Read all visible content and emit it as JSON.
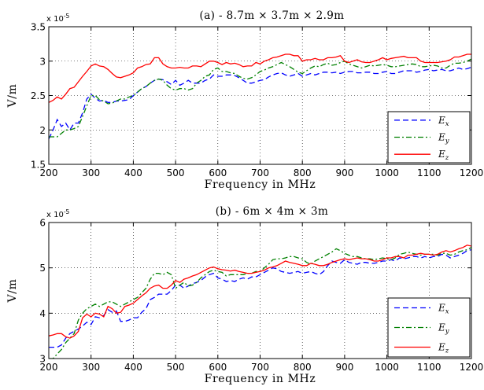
{
  "chart_data": [
    {
      "type": "line",
      "title": "(a) - 8.7m × 3.7m × 2.9m",
      "xlabel": "Frequency in MHz",
      "ylabel": "V/m",
      "multiplier": "x 10",
      "multiplier_exp": "-5",
      "xlim": [
        200,
        1200
      ],
      "ylim": [
        1.5,
        3.5
      ],
      "xticks": [
        "200",
        "300",
        "400",
        "500",
        "600",
        "700",
        "800",
        "900",
        "1000",
        "1100",
        "1200"
      ],
      "yticks": [
        "1.5",
        "2",
        "2.5",
        "3",
        "3.5"
      ],
      "grid": true,
      "legend_position": "bottom-right",
      "x": [
        200,
        210,
        220,
        230,
        240,
        250,
        260,
        270,
        280,
        290,
        300,
        310,
        320,
        330,
        340,
        350,
        360,
        370,
        380,
        390,
        400,
        410,
        420,
        430,
        440,
        450,
        460,
        470,
        480,
        490,
        500,
        510,
        520,
        530,
        540,
        550,
        560,
        570,
        580,
        590,
        600,
        610,
        620,
        630,
        640,
        650,
        660,
        670,
        680,
        690,
        700,
        710,
        720,
        730,
        740,
        750,
        760,
        770,
        780,
        790,
        800,
        810,
        820,
        830,
        840,
        850,
        860,
        870,
        880,
        890,
        900,
        910,
        920,
        930,
        940,
        950,
        960,
        970,
        980,
        990,
        1000,
        1010,
        1020,
        1030,
        1040,
        1050,
        1060,
        1070,
        1080,
        1090,
        1100,
        1110,
        1120,
        1130,
        1140,
        1150,
        1160,
        1170,
        1180,
        1190,
        1200
      ],
      "series": [
        {
          "name": "E",
          "subscript": "x",
          "color": "#0000ff",
          "dash": "7,4",
          "values": [
            1.87,
            2.0,
            2.15,
            2.05,
            2.1,
            2.0,
            2.1,
            2.1,
            2.25,
            2.45,
            2.52,
            2.46,
            2.42,
            2.43,
            2.4,
            2.4,
            2.42,
            2.42,
            2.43,
            2.44,
            2.5,
            2.55,
            2.6,
            2.63,
            2.68,
            2.72,
            2.74,
            2.73,
            2.7,
            2.66,
            2.72,
            2.65,
            2.68,
            2.72,
            2.68,
            2.68,
            2.68,
            2.72,
            2.74,
            2.8,
            2.78,
            2.78,
            2.8,
            2.8,
            2.79,
            2.76,
            2.72,
            2.68,
            2.68,
            2.7,
            2.72,
            2.73,
            2.77,
            2.8,
            2.82,
            2.83,
            2.8,
            2.78,
            2.8,
            2.82,
            2.78,
            2.8,
            2.82,
            2.8,
            2.82,
            2.84,
            2.84,
            2.83,
            2.84,
            2.82,
            2.84,
            2.85,
            2.85,
            2.83,
            2.83,
            2.84,
            2.84,
            2.82,
            2.82,
            2.84,
            2.85,
            2.82,
            2.82,
            2.84,
            2.86,
            2.86,
            2.86,
            2.84,
            2.85,
            2.87,
            2.88,
            2.86,
            2.87,
            2.88,
            2.86,
            2.86,
            2.88,
            2.9,
            2.88,
            2.89,
            2.91
          ]
        },
        {
          "name": "E",
          "subscript": "y",
          "color": "#008000",
          "dash": "7,3,2,3",
          "values": [
            1.9,
            1.9,
            1.9,
            1.95,
            2.0,
            2.0,
            2.02,
            2.05,
            2.2,
            2.35,
            2.5,
            2.5,
            2.44,
            2.42,
            2.38,
            2.39,
            2.42,
            2.45,
            2.45,
            2.48,
            2.5,
            2.55,
            2.6,
            2.63,
            2.68,
            2.72,
            2.74,
            2.72,
            2.65,
            2.6,
            2.58,
            2.6,
            2.6,
            2.58,
            2.6,
            2.68,
            2.72,
            2.78,
            2.8,
            2.88,
            2.9,
            2.85,
            2.85,
            2.83,
            2.82,
            2.78,
            2.75,
            2.74,
            2.76,
            2.8,
            2.85,
            2.87,
            2.9,
            2.92,
            2.95,
            2.98,
            2.95,
            2.92,
            2.88,
            2.84,
            2.82,
            2.86,
            2.9,
            2.93,
            2.92,
            2.95,
            2.97,
            2.94,
            2.95,
            2.98,
            3.0,
            2.96,
            2.94,
            2.92,
            2.9,
            2.92,
            2.94,
            2.93,
            2.94,
            2.95,
            2.94,
            2.92,
            2.92,
            2.93,
            2.94,
            2.95,
            2.96,
            2.95,
            2.92,
            2.92,
            2.93,
            2.94,
            2.93,
            2.9,
            2.9,
            2.94,
            2.97,
            2.97,
            2.98,
            3.0,
            3.03
          ]
        },
        {
          "name": "E",
          "subscript": "z",
          "color": "#ff0000",
          "dash": "",
          "values": [
            2.4,
            2.43,
            2.48,
            2.45,
            2.52,
            2.6,
            2.62,
            2.7,
            2.78,
            2.85,
            2.93,
            2.96,
            2.93,
            2.92,
            2.88,
            2.82,
            2.77,
            2.76,
            2.78,
            2.8,
            2.83,
            2.9,
            2.92,
            2.95,
            2.96,
            3.05,
            3.05,
            2.96,
            2.92,
            2.9,
            2.9,
            2.91,
            2.9,
            2.9,
            2.93,
            2.93,
            2.92,
            2.96,
            3.0,
            3.0,
            2.98,
            2.95,
            2.98,
            2.96,
            2.97,
            2.95,
            2.92,
            2.93,
            2.93,
            2.98,
            2.96,
            3.0,
            3.02,
            3.05,
            3.06,
            3.08,
            3.1,
            3.1,
            3.08,
            3.08,
            3.0,
            3.02,
            3.02,
            3.04,
            3.02,
            3.02,
            3.05,
            3.05,
            3.06,
            3.08,
            3.0,
            2.98,
            3.0,
            3.02,
            2.99,
            2.98,
            2.98,
            3.0,
            3.02,
            3.05,
            3.02,
            3.04,
            3.05,
            3.06,
            3.07,
            3.05,
            3.05,
            3.05,
            3.0,
            2.98,
            2.98,
            2.98,
            2.98,
            2.99,
            3.0,
            3.02,
            3.06,
            3.06,
            3.08,
            3.1,
            3.1
          ]
        }
      ]
    },
    {
      "type": "line",
      "title": "(b) - 6m × 4m × 3m",
      "xlabel": "Frequency in MHz",
      "ylabel": "V/m",
      "multiplier": "x 10",
      "multiplier_exp": "-5",
      "xlim": [
        200,
        1200
      ],
      "ylim": [
        3,
        6
      ],
      "xticks": [
        "200",
        "300",
        "400",
        "500",
        "600",
        "700",
        "800",
        "900",
        "1000",
        "1100",
        "1200"
      ],
      "yticks": [
        "3",
        "4",
        "5",
        "6"
      ],
      "grid": true,
      "legend_position": "bottom-right",
      "x": [
        200,
        210,
        220,
        230,
        240,
        250,
        260,
        270,
        280,
        290,
        300,
        310,
        320,
        330,
        340,
        350,
        360,
        370,
        380,
        390,
        400,
        410,
        420,
        430,
        440,
        450,
        460,
        470,
        480,
        490,
        500,
        510,
        520,
        530,
        540,
        550,
        560,
        570,
        580,
        590,
        600,
        610,
        620,
        630,
        640,
        650,
        660,
        670,
        680,
        690,
        700,
        710,
        720,
        730,
        740,
        750,
        760,
        770,
        780,
        790,
        800,
        810,
        820,
        830,
        840,
        850,
        860,
        870,
        880,
        890,
        900,
        910,
        920,
        930,
        940,
        950,
        960,
        970,
        980,
        990,
        1000,
        1010,
        1020,
        1030,
        1040,
        1050,
        1060,
        1070,
        1080,
        1090,
        1100,
        1110,
        1120,
        1130,
        1140,
        1150,
        1160,
        1170,
        1180,
        1190,
        1200
      ],
      "series": [
        {
          "name": "E",
          "subscript": "x",
          "color": "#0000ff",
          "dash": "7,4",
          "values": [
            3.25,
            3.25,
            3.25,
            3.3,
            3.45,
            3.55,
            3.6,
            3.65,
            3.72,
            3.8,
            3.75,
            3.92,
            3.9,
            3.95,
            4.08,
            4.02,
            4.05,
            3.82,
            3.82,
            3.85,
            3.9,
            3.9,
            4.02,
            4.1,
            4.3,
            4.35,
            4.42,
            4.42,
            4.42,
            4.5,
            4.62,
            4.62,
            4.55,
            4.6,
            4.65,
            4.68,
            4.72,
            4.8,
            4.85,
            4.88,
            4.78,
            4.75,
            4.7,
            4.72,
            4.7,
            4.75,
            4.78,
            4.75,
            4.8,
            4.8,
            4.85,
            4.9,
            4.95,
            5.0,
            4.98,
            4.92,
            4.9,
            4.88,
            4.9,
            4.92,
            4.88,
            4.9,
            4.92,
            4.88,
            4.85,
            4.92,
            5.05,
            5.15,
            5.12,
            5.1,
            5.18,
            5.12,
            5.1,
            5.08,
            5.12,
            5.12,
            5.1,
            5.1,
            5.12,
            5.15,
            5.15,
            5.18,
            5.15,
            5.22,
            5.2,
            5.22,
            5.25,
            5.25,
            5.22,
            5.25,
            5.22,
            5.25,
            5.25,
            5.3,
            5.28,
            5.22,
            5.25,
            5.28,
            5.32,
            5.38,
            5.4
          ]
        },
        {
          "name": "E",
          "subscript": "y",
          "color": "#008000",
          "dash": "7,3,2,3",
          "values": [
            3.0,
            3.0,
            3.1,
            3.2,
            3.35,
            3.45,
            3.55,
            3.85,
            4.0,
            4.1,
            4.15,
            4.2,
            4.15,
            4.2,
            4.25,
            4.25,
            4.2,
            4.15,
            4.2,
            4.25,
            4.3,
            4.35,
            4.45,
            4.55,
            4.75,
            4.88,
            4.88,
            4.85,
            4.9,
            4.85,
            4.55,
            4.62,
            4.68,
            4.6,
            4.62,
            4.68,
            4.78,
            4.85,
            4.92,
            4.95,
            4.92,
            4.9,
            4.82,
            4.85,
            4.85,
            4.85,
            4.85,
            4.88,
            4.88,
            4.92,
            4.92,
            5.0,
            5.08,
            5.18,
            5.2,
            5.2,
            5.22,
            5.25,
            5.25,
            5.22,
            5.2,
            5.12,
            5.08,
            5.15,
            5.2,
            5.25,
            5.3,
            5.35,
            5.42,
            5.38,
            5.32,
            5.28,
            5.25,
            5.25,
            5.22,
            5.2,
            5.2,
            5.18,
            5.2,
            5.22,
            5.2,
            5.18,
            5.22,
            5.3,
            5.32,
            5.35,
            5.32,
            5.3,
            5.28,
            5.3,
            5.3,
            5.3,
            5.28,
            5.32,
            5.32,
            5.28,
            5.3,
            5.35,
            5.38,
            5.4,
            5.45
          ]
        },
        {
          "name": "E",
          "subscript": "z",
          "color": "#ff0000",
          "dash": "",
          "values": [
            3.5,
            3.52,
            3.55,
            3.55,
            3.48,
            3.45,
            3.5,
            3.6,
            3.9,
            3.98,
            3.92,
            4.0,
            3.98,
            3.92,
            4.15,
            4.1,
            4.0,
            4.02,
            4.15,
            4.18,
            4.22,
            4.3,
            4.38,
            4.45,
            4.55,
            4.6,
            4.62,
            4.55,
            4.55,
            4.62,
            4.72,
            4.68,
            4.75,
            4.78,
            4.82,
            4.85,
            4.9,
            4.95,
            5.0,
            5.02,
            4.98,
            4.96,
            4.95,
            4.93,
            4.95,
            4.92,
            4.9,
            4.88,
            4.88,
            4.9,
            4.92,
            4.95,
            5.0,
            5.02,
            5.05,
            5.1,
            5.15,
            5.12,
            5.1,
            5.08,
            5.05,
            5.05,
            5.1,
            5.08,
            5.05,
            5.05,
            5.08,
            5.12,
            5.15,
            5.18,
            5.2,
            5.18,
            5.2,
            5.22,
            5.2,
            5.2,
            5.18,
            5.15,
            5.15,
            5.18,
            5.22,
            5.22,
            5.25,
            5.25,
            5.22,
            5.28,
            5.28,
            5.3,
            5.32,
            5.3,
            5.3,
            5.28,
            5.3,
            5.35,
            5.38,
            5.35,
            5.38,
            5.42,
            5.45,
            5.5,
            5.48
          ]
        }
      ]
    }
  ]
}
